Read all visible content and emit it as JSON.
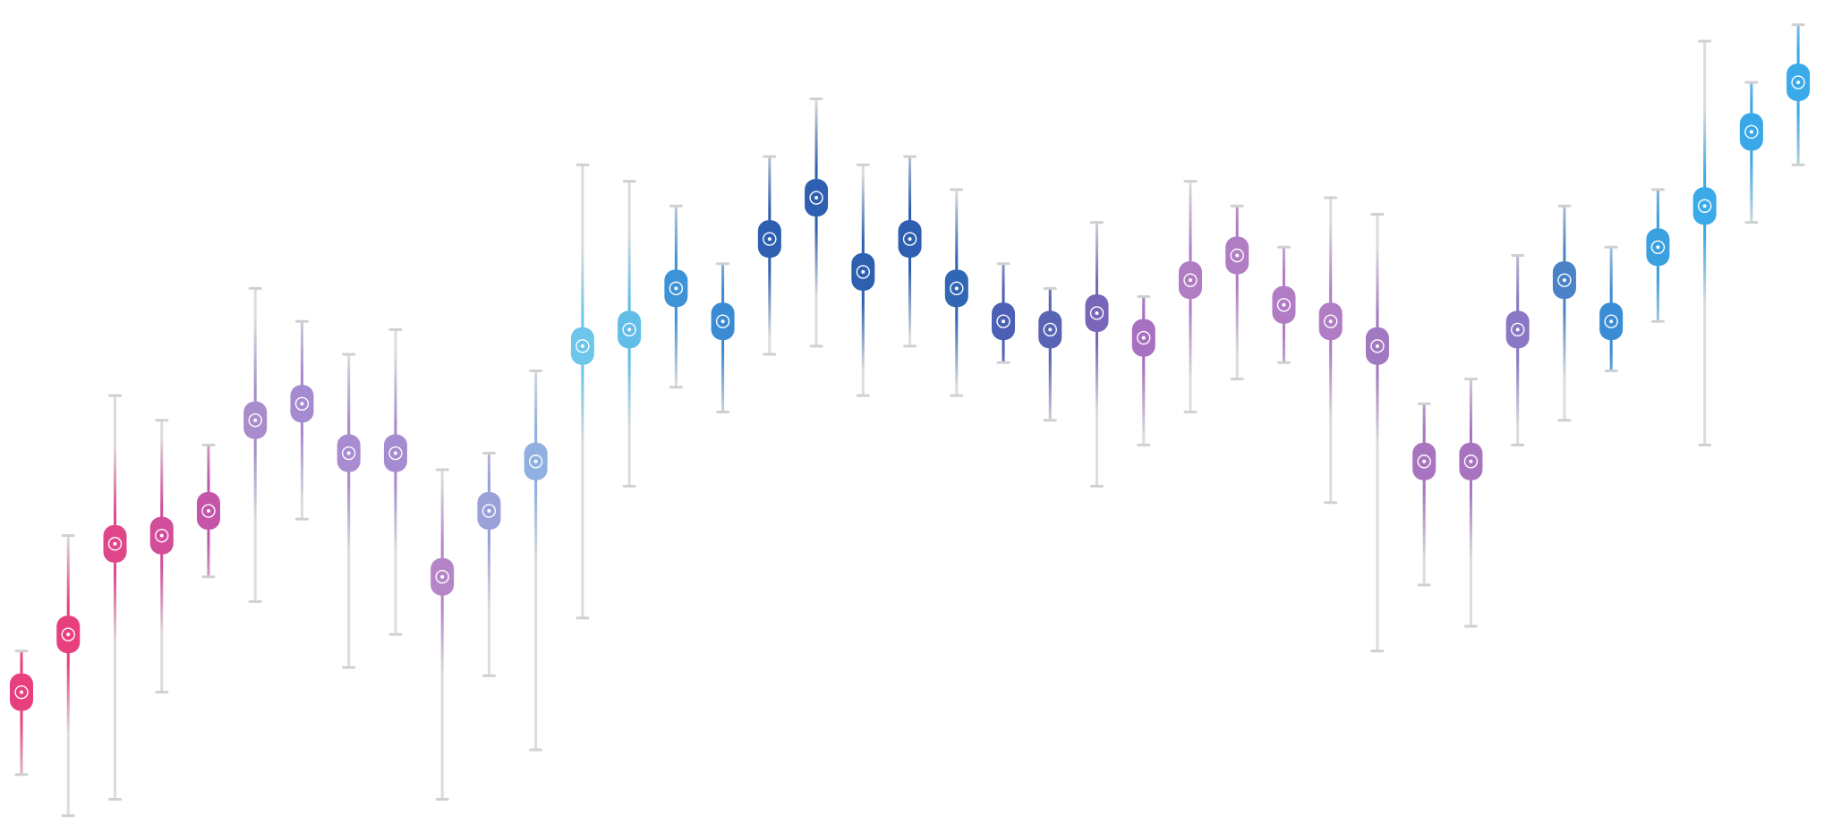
{
  "chart_data": {
    "type": "range",
    "ylim": [
      0,
      100
    ],
    "series": [
      {
        "values": [
          16,
          23,
          34,
          35,
          38,
          49,
          51,
          45,
          45,
          30,
          38,
          44,
          58,
          60,
          65,
          61,
          71,
          76,
          67,
          71,
          65,
          61,
          60,
          62,
          59,
          66,
          69,
          63,
          61,
          58,
          44,
          44,
          60,
          66,
          61,
          70,
          75,
          84,
          90
        ],
        "lows": [
          6,
          1,
          3,
          16,
          30,
          27,
          37,
          19,
          23,
          3,
          18,
          9,
          25,
          41,
          53,
          50,
          57,
          58,
          52,
          58,
          52,
          56,
          49,
          41,
          46,
          50,
          54,
          56,
          39,
          21,
          29,
          24,
          46,
          49,
          55,
          61,
          46,
          73,
          80
        ],
        "highs": [
          21,
          35,
          52,
          49,
          46,
          65,
          61,
          57,
          60,
          43,
          45,
          55,
          80,
          78,
          75,
          68,
          81,
          88,
          80,
          81,
          77,
          68,
          65,
          73,
          64,
          78,
          75,
          70,
          76,
          74,
          51,
          54,
          69,
          75,
          70,
          77,
          95,
          90,
          97
        ],
        "colors": [
          "#e8407f",
          "#e8407f",
          "#e0478a",
          "#d24d9a",
          "#c455a8",
          "#a88ccc",
          "#a68ad0",
          "#a88bd0",
          "#a58cd0",
          "#b585c8",
          "#9aa0d8",
          "#8fb0e0",
          "#6ec6ea",
          "#62bde8",
          "#3d93d8",
          "#3b8bd4",
          "#2e5fb0",
          "#2e5fb0",
          "#2e5fb0",
          "#2e5fb0",
          "#3166b5",
          "#4a5fb5",
          "#5a64b5",
          "#7a66b8",
          "#a870c0",
          "#b07cc4",
          "#b07cc4",
          "#b07cc4",
          "#b07cc4",
          "#a278c0",
          "#a874c0",
          "#a874c0",
          "#8a78c4",
          "#4a82c8",
          "#3a8cd4",
          "#3aa0e0",
          "#3aaae8",
          "#3aa8e8",
          "#3aaaea"
        ]
      }
    ]
  }
}
